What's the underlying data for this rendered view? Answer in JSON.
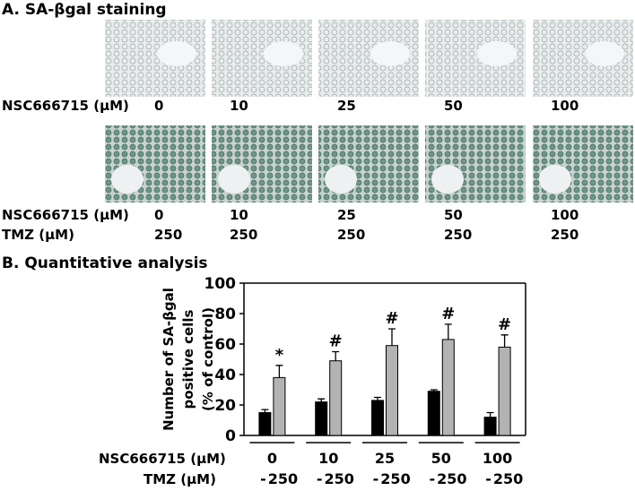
{
  "panel_a": {
    "title": "A. SA-βgal staining",
    "rows": [
      {
        "labels": [
          {
            "name": "NSC666715 (μM)",
            "values": [
              "0",
              "10",
              "25",
              "50",
              "100"
            ]
          }
        ]
      },
      {
        "labels": [
          {
            "name": "NSC666715 (μM)",
            "values": [
              "0",
              "10",
              "25",
              "50",
              "100"
            ]
          },
          {
            "name": "TMZ (μM)",
            "values": [
              "250",
              "250",
              "250",
              "250",
              "250"
            ]
          }
        ]
      }
    ]
  },
  "chart_data": {
    "type": "bar",
    "title": "B. Quantitative analysis",
    "ylabel": [
      "Number of SA-βgal",
      "positive cells",
      "(% of control)"
    ],
    "category_label": "NSC666715 (μM)",
    "series_label": "TMZ (μM)",
    "categories": [
      "0",
      "10",
      "25",
      "50",
      "100"
    ],
    "series": [
      {
        "name": "-",
        "color": "#000000",
        "values": [
          15,
          22,
          23,
          29,
          12
        ],
        "errors": [
          2,
          2,
          2,
          1,
          3
        ]
      },
      {
        "name": "250",
        "color": "#b3b3b3",
        "values": [
          38,
          49,
          59,
          63,
          58
        ],
        "errors": [
          8,
          6,
          11,
          10,
          8
        ],
        "annotations": [
          "*",
          "#",
          "#",
          "#",
          "#"
        ]
      }
    ],
    "ylim": [
      0,
      100
    ],
    "yticks": [
      0,
      20,
      40,
      60,
      80,
      100
    ]
  }
}
